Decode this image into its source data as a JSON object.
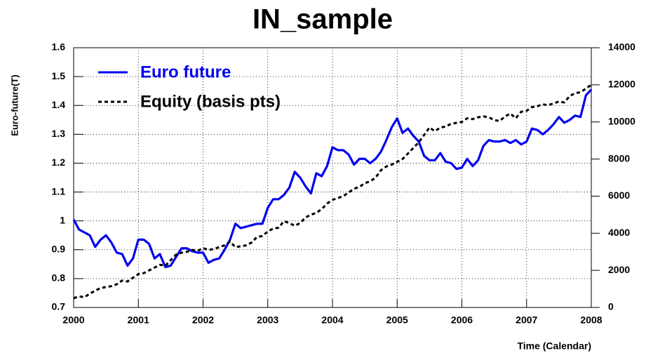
{
  "chart_data": {
    "type": "line",
    "title": "IN_sample",
    "x_label": "Time (Calendar)",
    "y_label": "Euro-future(T)",
    "x": [
      2000,
      2000.083,
      2000.167,
      2000.25,
      2000.333,
      2000.417,
      2000.5,
      2000.583,
      2000.667,
      2000.75,
      2000.833,
      2000.917,
      2001,
      2001.083,
      2001.167,
      2001.25,
      2001.333,
      2001.417,
      2001.5,
      2001.583,
      2001.667,
      2001.75,
      2001.833,
      2001.917,
      2002,
      2002.083,
      2002.167,
      2002.25,
      2002.333,
      2002.417,
      2002.5,
      2002.583,
      2002.667,
      2002.75,
      2002.833,
      2002.917,
      2003,
      2003.083,
      2003.167,
      2003.25,
      2003.333,
      2003.417,
      2003.5,
      2003.583,
      2003.667,
      2003.75,
      2003.833,
      2003.917,
      2004,
      2004.083,
      2004.167,
      2004.25,
      2004.333,
      2004.417,
      2004.5,
      2004.583,
      2004.667,
      2004.75,
      2004.833,
      2004.917,
      2005,
      2005.083,
      2005.167,
      2005.25,
      2005.333,
      2005.417,
      2005.5,
      2005.583,
      2005.667,
      2005.75,
      2005.833,
      2005.917,
      2006,
      2006.083,
      2006.167,
      2006.25,
      2006.333,
      2006.417,
      2006.5,
      2006.583,
      2006.667,
      2006.75,
      2006.833,
      2006.917,
      2007,
      2007.083,
      2007.167,
      2007.25,
      2007.333,
      2007.417,
      2007.5,
      2007.583,
      2007.667,
      2007.75,
      2007.833,
      2007.917,
      2008
    ],
    "series": [
      {
        "name": "Euro future",
        "color": "#0000ee",
        "style": "solid",
        "values": [
          1.005,
          0.97,
          0.96,
          0.95,
          0.91,
          0.935,
          0.95,
          0.925,
          0.89,
          0.885,
          0.845,
          0.87,
          0.935,
          0.935,
          0.92,
          0.87,
          0.885,
          0.84,
          0.845,
          0.875,
          0.905,
          0.905,
          0.895,
          0.89,
          0.89,
          0.855,
          0.865,
          0.87,
          0.9,
          0.935,
          0.99,
          0.975,
          0.98,
          0.985,
          0.99,
          0.99,
          1.045,
          1.075,
          1.075,
          1.09,
          1.115,
          1.17,
          1.15,
          1.12,
          1.095,
          1.165,
          1.155,
          1.19,
          1.255,
          1.245,
          1.245,
          1.23,
          1.195,
          1.215,
          1.215,
          1.2,
          1.215,
          1.24,
          1.28,
          1.325,
          1.355,
          1.305,
          1.32,
          1.295,
          1.275,
          1.225,
          1.21,
          1.21,
          1.235,
          1.205,
          1.2,
          1.18,
          1.185,
          1.215,
          1.19,
          1.21,
          1.26,
          1.28,
          1.275,
          1.275,
          1.28,
          1.27,
          1.28,
          1.265,
          1.275,
          1.32,
          1.315,
          1.3,
          1.315,
          1.335,
          1.36,
          1.34,
          1.35,
          1.365,
          1.36,
          1.435,
          1.455
        ]
      },
      {
        "name": "Equity (basis pts)",
        "color": "#000000",
        "style": "dashed",
        "axis": "y2",
        "values": [
          500,
          600,
          550,
          750,
          900,
          1050,
          1100,
          1150,
          1250,
          1450,
          1400,
          1600,
          1800,
          1850,
          2000,
          2150,
          2300,
          2250,
          2550,
          2850,
          2950,
          3000,
          3100,
          3050,
          3200,
          3100,
          3150,
          3250,
          3350,
          3550,
          3250,
          3300,
          3350,
          3500,
          3800,
          3850,
          4100,
          4250,
          4300,
          4650,
          4550,
          4400,
          4550,
          4850,
          5000,
          5100,
          5300,
          5600,
          5800,
          5900,
          6000,
          6200,
          6400,
          6500,
          6700,
          6800,
          7000,
          7400,
          7600,
          7700,
          7850,
          8000,
          8300,
          8600,
          8900,
          9300,
          9700,
          9500,
          9700,
          9750,
          9900,
          9950,
          10000,
          10200,
          10150,
          10250,
          10300,
          10250,
          10100,
          10050,
          10300,
          10450,
          10200,
          10550,
          10600,
          10800,
          10850,
          10950,
          10900,
          11000,
          11100,
          11050,
          11400,
          11550,
          11600,
          11800,
          12000
        ]
      }
    ],
    "xlim": [
      2000,
      2008
    ],
    "xticks": [
      2000,
      2001,
      2002,
      2003,
      2004,
      2005,
      2006,
      2007,
      2008
    ],
    "ylim": [
      0.7,
      1.6
    ],
    "yticks": [
      0.7,
      0.8,
      0.9,
      1,
      1.1,
      1.2,
      1.3,
      1.4,
      1.5,
      1.6
    ],
    "y2lim": [
      0,
      14000
    ],
    "y2ticks": [
      0,
      2000,
      4000,
      6000,
      8000,
      10000,
      12000,
      14000
    ],
    "grid": true,
    "legend": "upper left"
  }
}
